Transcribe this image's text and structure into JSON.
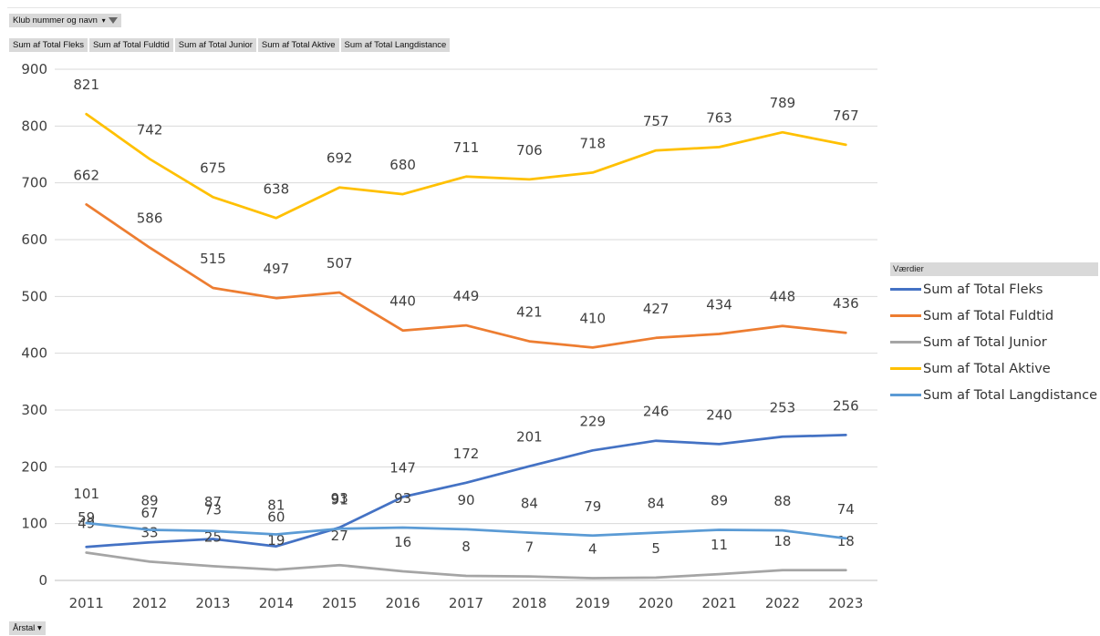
{
  "filter_field": {
    "label": "Klub nummer og navn",
    "dropdown_icon": "dropdown-arrow-icon",
    "filter_icon": "funnel-filter-icon"
  },
  "value_buttons": [
    "Sum af Total Fleks",
    "Sum af Total Fuldtid",
    "Sum af Total Junior",
    "Sum af Total Aktive",
    "Sum af Total Langdistance"
  ],
  "axis_field": {
    "label": "Årstal",
    "dropdown_icon": "dropdown-arrow-icon"
  },
  "legend": {
    "title": "Værdier"
  },
  "chart_data": {
    "type": "line",
    "x": [
      "2011",
      "2012",
      "2013",
      "2014",
      "2015",
      "2016",
      "2017",
      "2018",
      "2019",
      "2020",
      "2021",
      "2022",
      "2023"
    ],
    "ylim": [
      0,
      900
    ],
    "yticks": [
      0,
      100,
      200,
      300,
      400,
      500,
      600,
      700,
      800,
      900
    ],
    "grid": true,
    "legend_position": "right",
    "series": [
      {
        "name": "Sum af Total Fleks",
        "color": "#4472C4",
        "values": [
          59,
          67,
          73,
          60,
          93,
          147,
          172,
          201,
          229,
          246,
          240,
          253,
          256
        ]
      },
      {
        "name": "Sum af Total Fuldtid",
        "color": "#ED7D31",
        "values": [
          662,
          586,
          515,
          497,
          507,
          440,
          449,
          421,
          410,
          427,
          434,
          448,
          436
        ]
      },
      {
        "name": "Sum af Total Junior",
        "color": "#A5A5A5",
        "values": [
          49,
          33,
          25,
          19,
          27,
          16,
          8,
          7,
          4,
          5,
          11,
          18,
          18
        ]
      },
      {
        "name": "Sum af Total Aktive",
        "color": "#FFC000",
        "values": [
          821,
          742,
          675,
          638,
          692,
          680,
          711,
          706,
          718,
          757,
          763,
          789,
          767
        ]
      },
      {
        "name": "Sum af Total Langdistance",
        "color": "#5B9BD5",
        "values": [
          101,
          89,
          87,
          81,
          91,
          93,
          90,
          84,
          79,
          84,
          89,
          88,
          74
        ]
      }
    ]
  }
}
